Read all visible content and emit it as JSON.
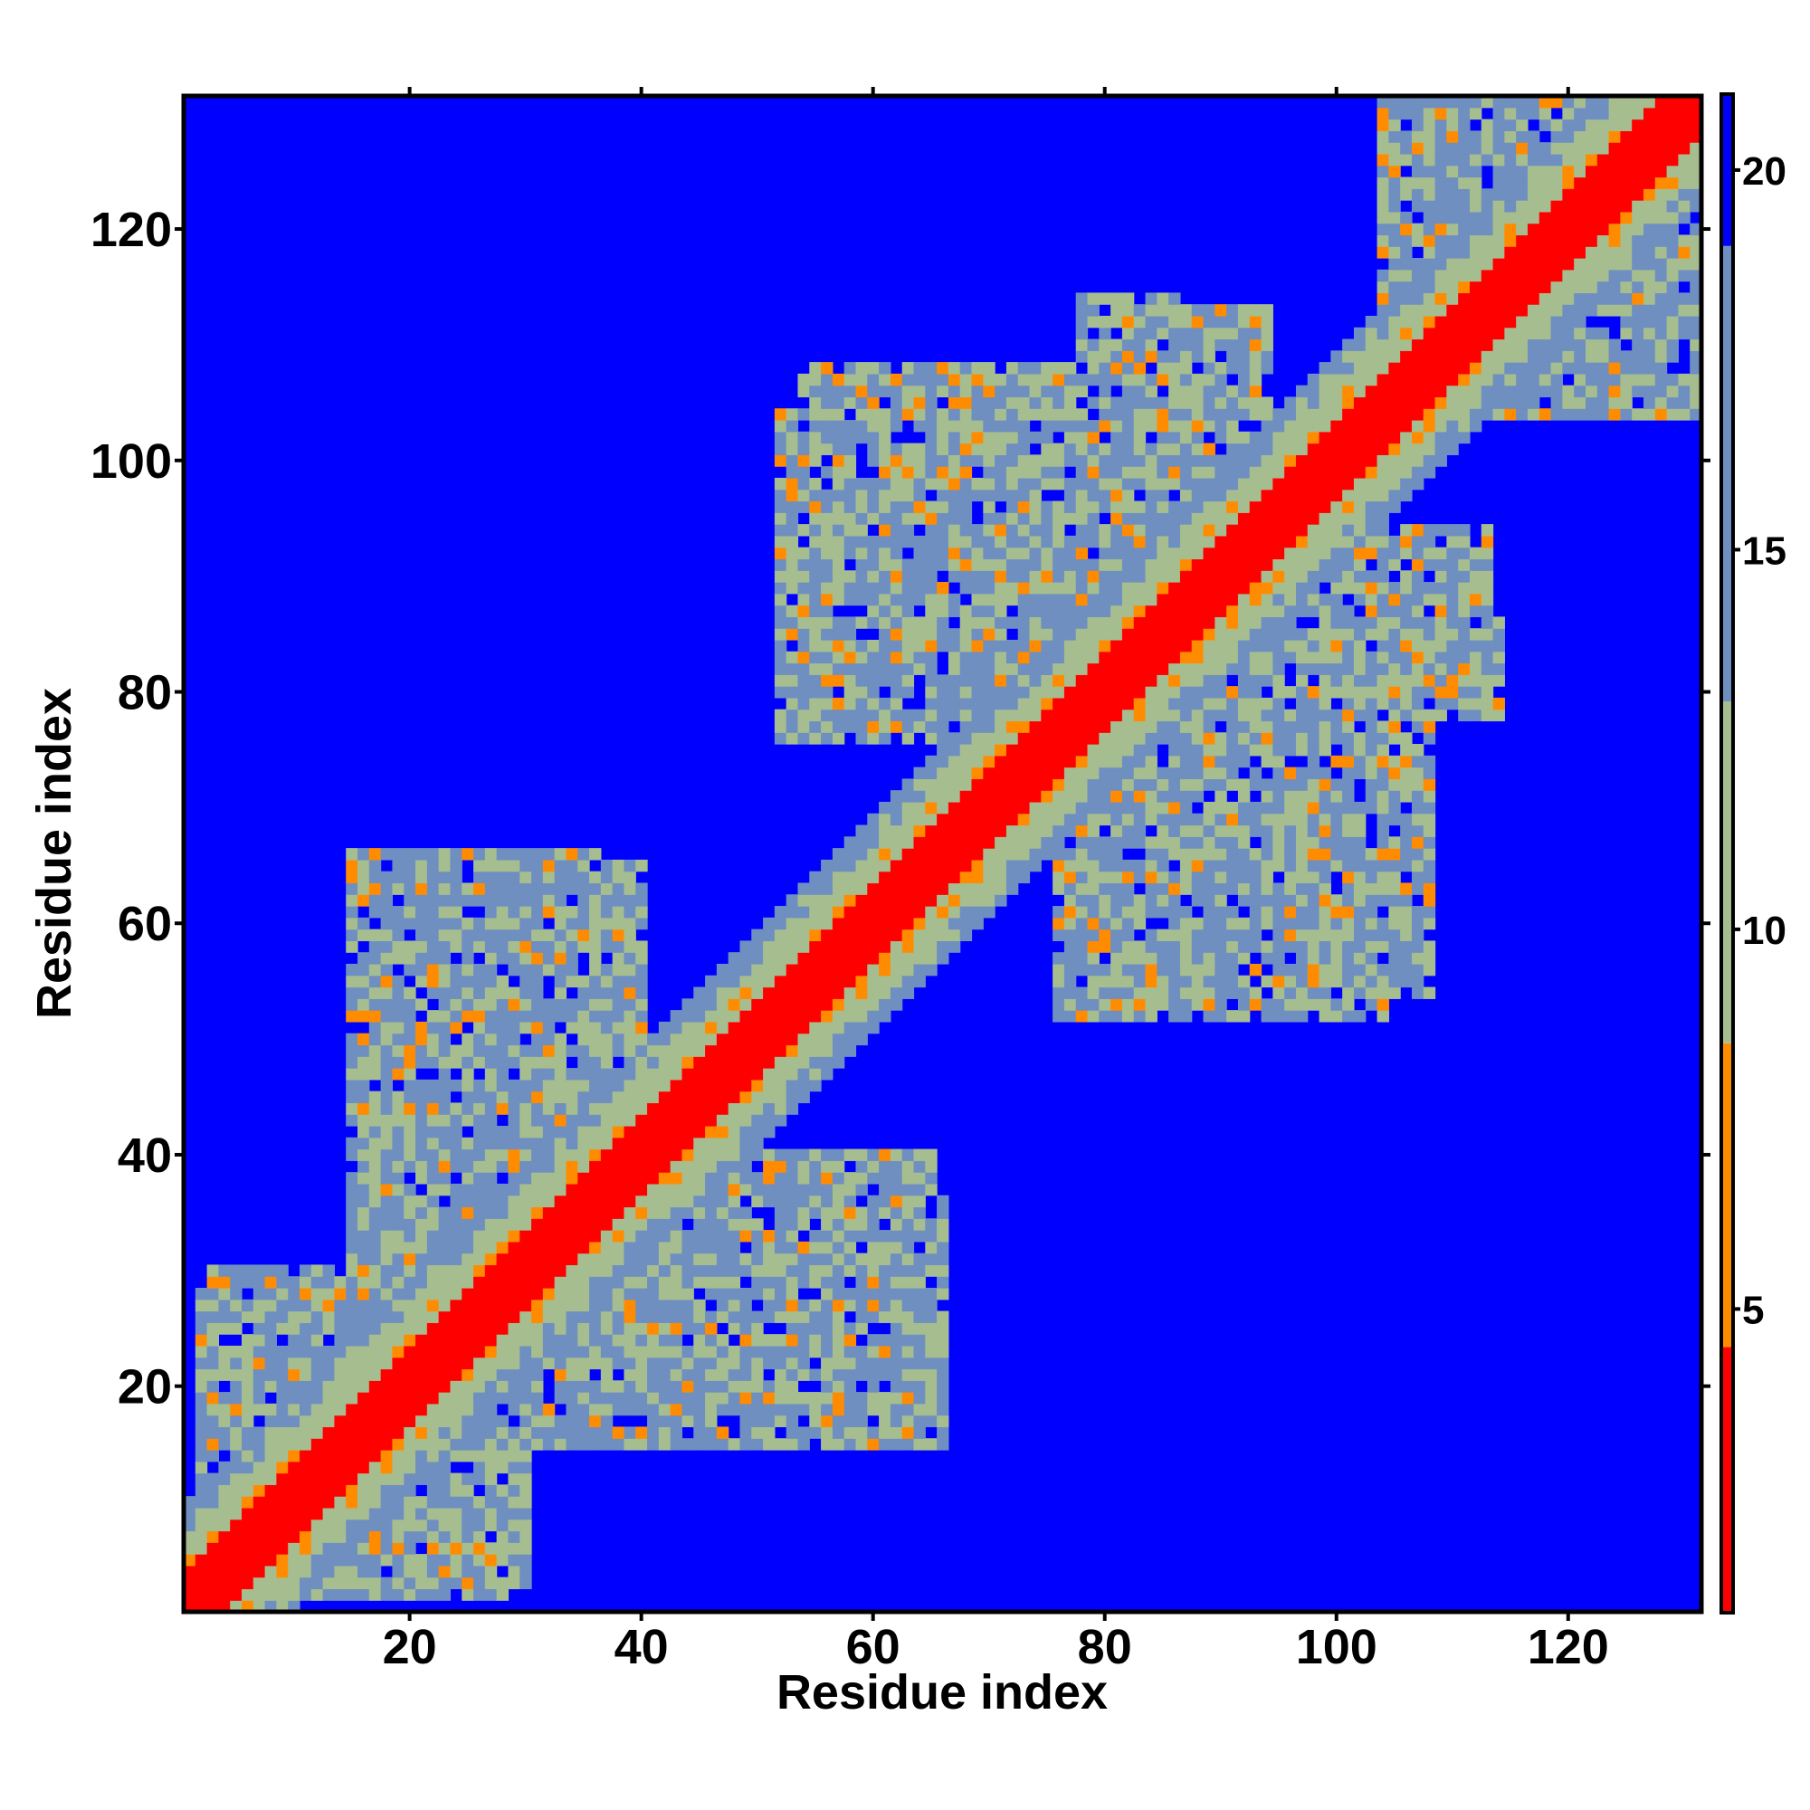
{
  "chart_data": {
    "type": "heatmap",
    "title": "",
    "xlabel": "Residue index",
    "ylabel": "Residue index",
    "xlim": [
      0.5,
      131.5
    ],
    "ylim": [
      0.5,
      131.5
    ],
    "n_residues": 131,
    "x_ticks": [
      20,
      40,
      60,
      80,
      100,
      120
    ],
    "y_ticks": [
      20,
      40,
      60,
      80,
      100,
      120
    ],
    "colorbar": {
      "range": [
        1,
        21
      ],
      "ticks": [
        5,
        10,
        15,
        20
      ],
      "bands": [
        {
          "from": 1,
          "to": 4.5,
          "color": "#ff0000"
        },
        {
          "from": 4.5,
          "to": 8.5,
          "color": "#ff8c00"
        },
        {
          "from": 8.5,
          "to": 13,
          "color": "#a6be8f"
        },
        {
          "from": 13,
          "to": 19,
          "color": "#6f8fc0"
        },
        {
          "from": 19,
          "to": 21,
          "color": "#0000ff"
        }
      ]
    },
    "cutoff_color": "#0000ff",
    "contact_blocks": [
      {
        "x": [
          3,
          28
        ],
        "y": [
          2,
          30
        ]
      },
      {
        "x": [
          15,
          34
        ],
        "y": [
          16,
          66
        ]
      },
      {
        "x": [
          30,
          36
        ],
        "y": [
          48,
          66
        ]
      },
      {
        "x": [
          44,
          65
        ],
        "y": [
          16,
          40
        ]
      },
      {
        "x": [
          52,
          66
        ],
        "y": [
          76,
          104
        ]
      },
      {
        "x": [
          78,
          86
        ],
        "y": [
          54,
          114
        ]
      },
      {
        "x": [
          78,
          108
        ],
        "y": [
          54,
          80
        ]
      },
      {
        "x": [
          86,
          113
        ],
        "y": [
          80,
          94
        ]
      },
      {
        "x": [
          104,
          131
        ],
        "y": [
          104,
          131
        ]
      }
    ]
  }
}
